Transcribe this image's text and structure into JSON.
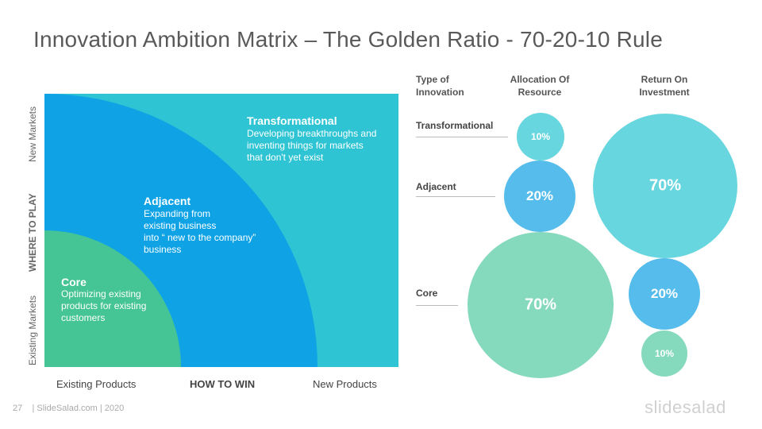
{
  "title": "Innovation Ambition Matrix – The Golden Ratio - 70-20-10 Rule",
  "matrix": {
    "colors": {
      "transformational": "#2ec4d4",
      "adjacent": "#0fa3e6",
      "core": "#45c495"
    },
    "zones": {
      "transformational": {
        "title": "Transformational",
        "desc": [
          "Developing breakthroughs and",
          "inventing things for markets",
          "that don't yet exist"
        ]
      },
      "adjacent": {
        "title": "Adjacent",
        "desc": [
          "Expanding from",
          "existing business",
          "into “ new to the company”",
          "business"
        ]
      },
      "core": {
        "title": "Core",
        "desc": [
          "Optimizing existing",
          "products for existing",
          "customers"
        ]
      }
    },
    "y_axis": {
      "top": "New Markets",
      "middle": "WHERE TO PLAY",
      "bottom": "Existing Markets"
    },
    "x_axis": {
      "left": "Existing Products",
      "middle": "HOW TO WIN",
      "right": "New Products"
    }
  },
  "table": {
    "headers": {
      "type": [
        "Type of",
        "Innovation"
      ],
      "allocation": [
        "Allocation  Of",
        "Resource"
      ],
      "roi": [
        "Return On",
        "Investment"
      ]
    },
    "rows": [
      {
        "label": "Transformational",
        "allocation": "10%",
        "roi": "70%"
      },
      {
        "label": "Adjacent",
        "allocation": "20%",
        "roi": "20%"
      },
      {
        "label": "Core",
        "allocation": "70%",
        "roi": "10%"
      }
    ],
    "colors": {
      "light_teal": "#68d6de",
      "blue": "#55bceb",
      "mint": "#85d9bd"
    }
  },
  "footer": {
    "page": "27",
    "source": "| SlideSalad.com | 2020",
    "brand": "slidesalad"
  }
}
